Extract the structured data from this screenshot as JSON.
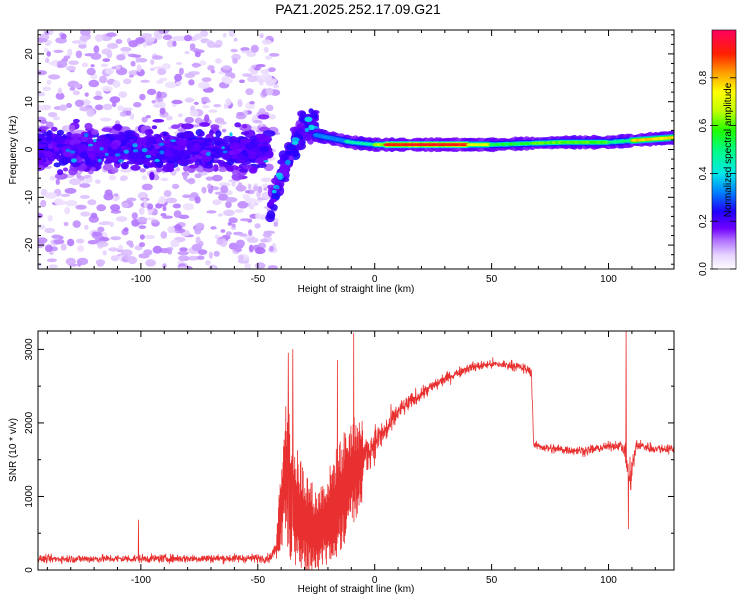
{
  "title": "PAZ1.2025.252.17.09.G21",
  "chart_data": [
    {
      "type": "heatmap",
      "xlabel": "Height of straight line (km)",
      "ylabel": "Frequency (Hz)",
      "xlim": [
        -144,
        128
      ],
      "ylim": [
        -25,
        25
      ],
      "xticks": [
        -100,
        -50,
        0,
        50,
        100
      ],
      "yticks": [
        -20,
        -10,
        0,
        10,
        20
      ],
      "colorbar": {
        "label": "Normalized spectral amplitude",
        "range": [
          0,
          1
        ],
        "ticks": [
          0.0,
          0.2,
          0.4,
          0.6,
          0.8
        ],
        "tick_labels": [
          "0.0",
          "0.2",
          "0.4",
          "0.6",
          "0.8"
        ]
      },
      "features": {
        "noise_region_x": [
          -144,
          -45
        ],
        "noise_center_hz": 0,
        "noise_band_halfwidth_hz": 6,
        "transition_x": [
          -45,
          -25
        ],
        "transition_from_hz": -11,
        "transition_to_hz": 5,
        "signal_x": [
          -25,
          128
        ],
        "signal_hz": [
          [
            -25,
            3
          ],
          [
            -10,
            1.5
          ],
          [
            0,
            1
          ],
          [
            20,
            1
          ],
          [
            50,
            1
          ],
          [
            80,
            1.5
          ],
          [
            100,
            1.5
          ],
          [
            128,
            2.5
          ]
        ],
        "peak_amplitude_region_x": [
          5,
          40
        ]
      },
      "colors": [
        "#ffffff",
        "#e0c8ff",
        "#8000ff",
        "#0000ff",
        "#00e0ff",
        "#00ff40",
        "#ffff00",
        "#ff0000",
        "#ff0060"
      ]
    },
    {
      "type": "line",
      "xlabel": "Height of straight line (km)",
      "ylabel": "SNR (10 * v/v)",
      "xlim": [
        -144,
        128
      ],
      "ylim": [
        0,
        3250
      ],
      "xticks": [
        -100,
        -50,
        0,
        50,
        100
      ],
      "yticks": [
        0,
        1000,
        2000,
        3000
      ],
      "line_color": "#e83030",
      "envelope": {
        "x": [
          -144,
          -45,
          -42,
          -38,
          -34,
          -30,
          -25,
          -20,
          -15,
          -10,
          -5,
          0,
          5,
          10,
          20,
          30,
          40,
          50,
          60,
          67,
          68,
          75,
          90,
          100,
          105,
          107,
          109,
          112,
          120,
          128
        ],
        "mean": [
          150,
          160,
          300,
          1400,
          800,
          650,
          500,
          700,
          1000,
          1300,
          1500,
          1750,
          1900,
          2150,
          2400,
          2600,
          2750,
          2800,
          2780,
          2700,
          1700,
          1650,
          1620,
          1680,
          1700,
          1600,
          1200,
          1700,
          1650,
          1650
        ],
        "spread": [
          80,
          90,
          150,
          800,
          700,
          600,
          450,
          500,
          600,
          600,
          450,
          350,
          300,
          200,
          150,
          120,
          100,
          100,
          100,
          100,
          80,
          100,
          100,
          90,
          90,
          150,
          400,
          120,
          100,
          100
        ]
      },
      "spikes": [
        {
          "x": -101,
          "y": 680
        },
        {
          "x": -37,
          "y": 2950
        },
        {
          "x": -35,
          "y": 3000
        },
        {
          "x": -16,
          "y": 2850
        },
        {
          "x": -9,
          "y": 3220
        },
        {
          "x": 107.5,
          "y": 3250
        },
        {
          "x": 108.5,
          "y": 560
        }
      ]
    }
  ]
}
